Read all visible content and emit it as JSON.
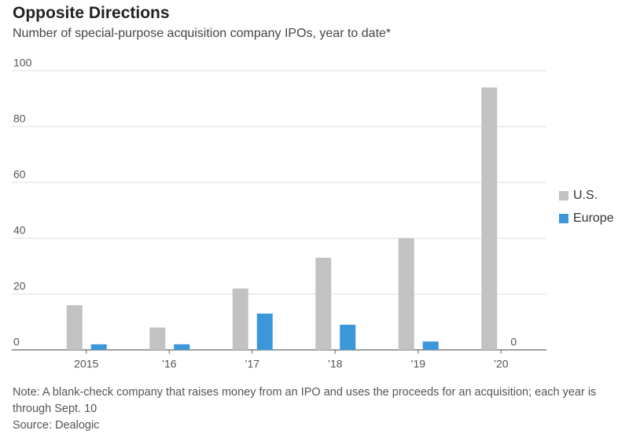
{
  "chart_data": {
    "type": "bar",
    "title": "Opposite Directions",
    "subtitle": "Number of special-purpose acquisition company IPOs, year to date*",
    "categories": [
      "2015",
      "’16",
      "’17",
      "’18",
      "’19",
      "’20"
    ],
    "series": [
      {
        "name": "U.S.",
        "color": "#c2c2c2",
        "values": [
          16,
          8,
          22,
          33,
          40,
          94
        ]
      },
      {
        "name": "Europe",
        "color": "#3b97d9",
        "values": [
          2,
          2,
          13,
          9,
          3,
          0
        ]
      }
    ],
    "ylim": [
      0,
      100
    ],
    "yticks": [
      0,
      20,
      40,
      60,
      80,
      100
    ],
    "grid": true,
    "legend": "right",
    "note": "Note: A blank-check company that raises money from an IPO and uses the proceeds for an acquisition; each year is through Sept. 10",
    "source": "Source: Dealogic"
  }
}
